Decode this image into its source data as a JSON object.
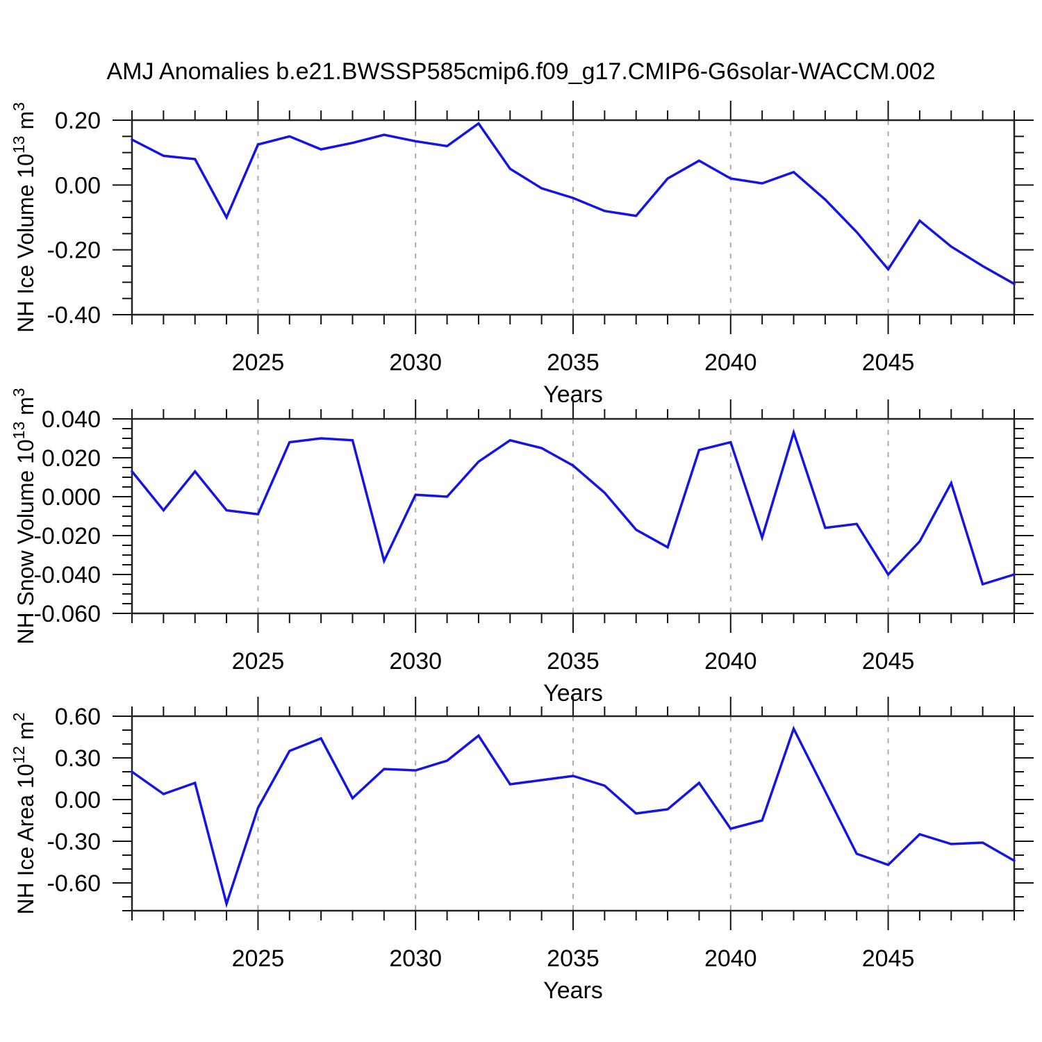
{
  "title": "AMJ Anomalies b.e21.BWSSP585cmip6.f09_g17.CMIP6-G6solar-WACCM.002",
  "colors": {
    "line": "#1414E6",
    "grid": "#ABABAB",
    "frame": "#222222",
    "tick": "#111111",
    "text": "#000000",
    "background": "#FFFFFF"
  },
  "chart_data": [
    {
      "type": "line",
      "name": "nh-ice-volume",
      "ylabel_segments": [
        {
          "t": "NH Ice Volume 10"
        },
        {
          "t": "13",
          "sup": true
        },
        {
          "t": " m"
        },
        {
          "t": "3",
          "sup": true
        }
      ],
      "xlabel": "Years",
      "xlim": [
        2021,
        2049
      ],
      "ylim": [
        -0.4,
        0.2
      ],
      "xticks": [
        {
          "v": 2025,
          "t": "2025"
        },
        {
          "v": 2030,
          "t": "2030"
        },
        {
          "v": 2035,
          "t": "2035"
        },
        {
          "v": 2040,
          "t": "2040"
        },
        {
          "v": 2045,
          "t": "2045"
        }
      ],
      "xminor_step": 1,
      "yticks": [
        {
          "v": 0.2,
          "t": "0.20"
        },
        {
          "v": 0.0,
          "t": "0.00"
        },
        {
          "v": -0.2,
          "t": "-0.20"
        },
        {
          "v": -0.4,
          "t": "-0.40"
        }
      ],
      "yminor_step": 0.05,
      "grid": "vertical-dashed",
      "legend": "none",
      "x": [
        2021,
        2022,
        2023,
        2024,
        2025,
        2026,
        2027,
        2028,
        2029,
        2030,
        2031,
        2032,
        2033,
        2034,
        2035,
        2036,
        2037,
        2038,
        2039,
        2040,
        2041,
        2042,
        2043,
        2044,
        2045,
        2046,
        2047,
        2048,
        2049
      ],
      "values": [
        0.14,
        0.09,
        0.08,
        -0.1,
        0.125,
        0.15,
        0.11,
        0.13,
        0.155,
        0.135,
        0.12,
        0.19,
        0.05,
        -0.01,
        -0.04,
        -0.08,
        -0.095,
        0.02,
        0.075,
        0.02,
        0.005,
        0.04,
        -0.045,
        -0.145,
        -0.26,
        -0.11,
        -0.19,
        -0.25,
        -0.305
      ]
    },
    {
      "type": "line",
      "name": "nh-snow-volume",
      "ylabel_segments": [
        {
          "t": "NH Snow Volume 10"
        },
        {
          "t": "13",
          "sup": true
        },
        {
          "t": " m"
        },
        {
          "t": "3",
          "sup": true
        }
      ],
      "xlabel": "Years",
      "xlim": [
        2021,
        2049
      ],
      "ylim": [
        -0.06,
        0.04
      ],
      "xticks": [
        {
          "v": 2025,
          "t": "2025"
        },
        {
          "v": 2030,
          "t": "2030"
        },
        {
          "v": 2035,
          "t": "2035"
        },
        {
          "v": 2040,
          "t": "2040"
        },
        {
          "v": 2045,
          "t": "2045"
        }
      ],
      "xminor_step": 1,
      "yticks": [
        {
          "v": 0.04,
          "t": "0.040"
        },
        {
          "v": 0.02,
          "t": "0.020"
        },
        {
          "v": 0.0,
          "t": "0.000"
        },
        {
          "v": -0.02,
          "t": "-0.020"
        },
        {
          "v": -0.04,
          "t": "-0.040"
        },
        {
          "v": -0.06,
          "t": "-0.060"
        }
      ],
      "yminor_step": 0.005,
      "grid": "vertical-dashed",
      "legend": "none",
      "x": [
        2021,
        2022,
        2023,
        2024,
        2025,
        2026,
        2027,
        2028,
        2029,
        2030,
        2031,
        2032,
        2033,
        2034,
        2035,
        2036,
        2037,
        2038,
        2039,
        2040,
        2041,
        2042,
        2043,
        2044,
        2045,
        2046,
        2047,
        2048,
        2049
      ],
      "values": [
        0.013,
        -0.007,
        0.013,
        -0.007,
        -0.009,
        0.028,
        0.03,
        0.029,
        -0.033,
        0.001,
        0.0,
        0.018,
        0.029,
        0.025,
        0.016,
        0.002,
        -0.017,
        -0.026,
        0.024,
        0.028,
        -0.021,
        0.033,
        -0.016,
        -0.014,
        -0.04,
        -0.023,
        0.007,
        -0.045,
        -0.04
      ]
    },
    {
      "type": "line",
      "name": "nh-ice-area",
      "ylabel_segments": [
        {
          "t": "NH Ice Area 10"
        },
        {
          "t": "12",
          "sup": true
        },
        {
          "t": " m"
        },
        {
          "t": "2",
          "sup": true
        }
      ],
      "xlabel": "Years",
      "xlim": [
        2021,
        2049
      ],
      "ylim": [
        -0.8,
        0.6
      ],
      "xticks": [
        {
          "v": 2025,
          "t": "2025"
        },
        {
          "v": 2030,
          "t": "2030"
        },
        {
          "v": 2035,
          "t": "2035"
        },
        {
          "v": 2040,
          "t": "2040"
        },
        {
          "v": 2045,
          "t": "2045"
        }
      ],
      "xminor_step": 1,
      "yticks": [
        {
          "v": 0.6,
          "t": "0.60"
        },
        {
          "v": 0.3,
          "t": "0.30"
        },
        {
          "v": 0.0,
          "t": "0.00"
        },
        {
          "v": -0.3,
          "t": "-0.30"
        },
        {
          "v": -0.6,
          "t": "-0.60"
        }
      ],
      "yminor_step": 0.1,
      "grid": "vertical-dashed",
      "legend": "none",
      "x": [
        2021,
        2022,
        2023,
        2024,
        2025,
        2026,
        2027,
        2028,
        2029,
        2030,
        2031,
        2032,
        2033,
        2034,
        2035,
        2036,
        2037,
        2038,
        2039,
        2040,
        2041,
        2042,
        2043,
        2044,
        2045,
        2046,
        2047,
        2048,
        2049
      ],
      "values": [
        0.2,
        0.04,
        0.12,
        -0.75,
        -0.06,
        0.35,
        0.44,
        0.01,
        0.22,
        0.21,
        0.28,
        0.46,
        0.11,
        0.14,
        0.17,
        0.1,
        -0.1,
        -0.07,
        0.12,
        -0.21,
        -0.15,
        0.51,
        0.06,
        -0.39,
        -0.47,
        -0.25,
        -0.32,
        -0.31,
        -0.44
      ]
    }
  ]
}
